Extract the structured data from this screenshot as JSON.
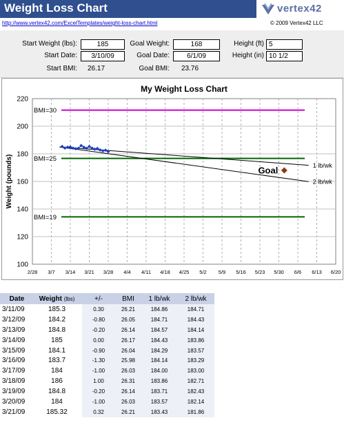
{
  "header": {
    "title": "Weight Loss Chart",
    "logo_text": "vertex42",
    "url": "http://www.vertex42.com/ExcelTemplates/weight-loss-chart.html",
    "copyright": "© 2009 Vertex42 LLC"
  },
  "inputs": {
    "start_weight_label": "Start Weight (lbs):",
    "start_weight": "185",
    "start_date_label": "Start Date:",
    "start_date": "3/10/09",
    "start_bmi_label": "Start BMI:",
    "start_bmi": "26.17",
    "goal_weight_label": "Goal Weight:",
    "goal_weight": "168",
    "goal_date_label": "Goal Date:",
    "goal_date": "6/1/09",
    "goal_bmi_label": "Goal BMI:",
    "goal_bmi": "23.76",
    "height_ft_label": "Height (ft)",
    "height_ft": "5",
    "height_in_label": "Height (in)",
    "height_in": "10 1/2"
  },
  "colors": {
    "title_bar": "#2f4f8f",
    "bmi30_line": "#cc00cc",
    "bmi_line": "#006400",
    "data_series": "#1f3fbf",
    "goal_marker": "#8b3a0f",
    "table_header": "#c9d1e7"
  },
  "chart_data": {
    "type": "line",
    "title": "My Weight Loss Chart",
    "ylabel": "Weight (pounds)",
    "xlabel": "",
    "ylim": [
      100,
      220
    ],
    "y_ticks": [
      "100",
      "120",
      "140",
      "160",
      "180",
      "200",
      "220"
    ],
    "x_tick_labels": [
      "2/28",
      "3/7",
      "3/14",
      "3/21",
      "3/28",
      "4/4",
      "4/11",
      "4/18",
      "4/25",
      "5/2",
      "5/9",
      "5/16",
      "5/23",
      "5/30",
      "6/6",
      "6/13",
      "6/20"
    ],
    "xlim": [
      "2/28/09",
      "6/20/09"
    ],
    "grid": true,
    "reference_lines": [
      {
        "label": "BMI=30",
        "value": 211.7
      },
      {
        "label": "BMI=25",
        "value": 176.7
      },
      {
        "label": "BMI=19",
        "value": 134.3
      }
    ],
    "trend_lines": [
      {
        "label": "1 lb/wk",
        "from": [
          "3/10/09",
          185
        ],
        "to": [
          "6/10/09",
          171.7
        ]
      },
      {
        "label": "2 lb/wk",
        "from": [
          "3/10/09",
          185
        ],
        "to": [
          "6/10/09",
          159.9
        ]
      }
    ],
    "goal": {
      "label": "Goal",
      "x": "6/1/09",
      "y": 168
    },
    "series": [
      {
        "x": [
          "3/11/09",
          "3/12/09",
          "3/13/09",
          "3/14/09",
          "3/15/09",
          "3/16/09",
          "3/17/09",
          "3/18/09",
          "3/19/09",
          "3/20/09",
          "3/21/09",
          "3/22/09",
          "3/23/09",
          "3/24/09",
          "3/25/09",
          "3/26/09",
          "3/27/09",
          "3/28/09"
        ],
        "values": [
          185.3,
          184.2,
          184.8,
          185,
          184.1,
          183.7,
          184,
          186,
          184.8,
          184,
          185.32,
          184.1,
          183.4,
          183.9,
          182.8,
          182.2,
          182.6,
          181.6
        ]
      }
    ]
  },
  "table": {
    "headers": [
      "Date",
      "Weight",
      "(lbs)",
      "+/-",
      "BMI",
      "1 lb/wk",
      "2 lb/wk"
    ],
    "rows": [
      {
        "date": "3/11/09",
        "weight": "185.3",
        "diff": "0.30",
        "bmi": "26.21",
        "w1": "184.86",
        "w2": "184.71"
      },
      {
        "date": "3/12/09",
        "weight": "184.2",
        "diff": "-0.80",
        "bmi": "26.05",
        "w1": "184.71",
        "w2": "184.43"
      },
      {
        "date": "3/13/09",
        "weight": "184.8",
        "diff": "-0.20",
        "bmi": "26.14",
        "w1": "184.57",
        "w2": "184.14"
      },
      {
        "date": "3/14/09",
        "weight": "185",
        "diff": "0.00",
        "bmi": "26.17",
        "w1": "184.43",
        "w2": "183.86"
      },
      {
        "date": "3/15/09",
        "weight": "184.1",
        "diff": "-0.90",
        "bmi": "26.04",
        "w1": "184.29",
        "w2": "183.57"
      },
      {
        "date": "3/16/09",
        "weight": "183.7",
        "diff": "-1.30",
        "bmi": "25.98",
        "w1": "184.14",
        "w2": "183.29"
      },
      {
        "date": "3/17/09",
        "weight": "184",
        "diff": "-1.00",
        "bmi": "26.03",
        "w1": "184.00",
        "w2": "183.00"
      },
      {
        "date": "3/18/09",
        "weight": "186",
        "diff": "1.00",
        "bmi": "26.31",
        "w1": "183.86",
        "w2": "182.71"
      },
      {
        "date": "3/19/09",
        "weight": "184.8",
        "diff": "-0.20",
        "bmi": "26.14",
        "w1": "183.71",
        "w2": "182.43"
      },
      {
        "date": "3/20/09",
        "weight": "184",
        "diff": "-1.00",
        "bmi": "26.03",
        "w1": "183.57",
        "w2": "182.14"
      },
      {
        "date": "3/21/09",
        "weight": "185.32",
        "diff": "0.32",
        "bmi": "26.21",
        "w1": "183.43",
        "w2": "181.86"
      }
    ]
  }
}
